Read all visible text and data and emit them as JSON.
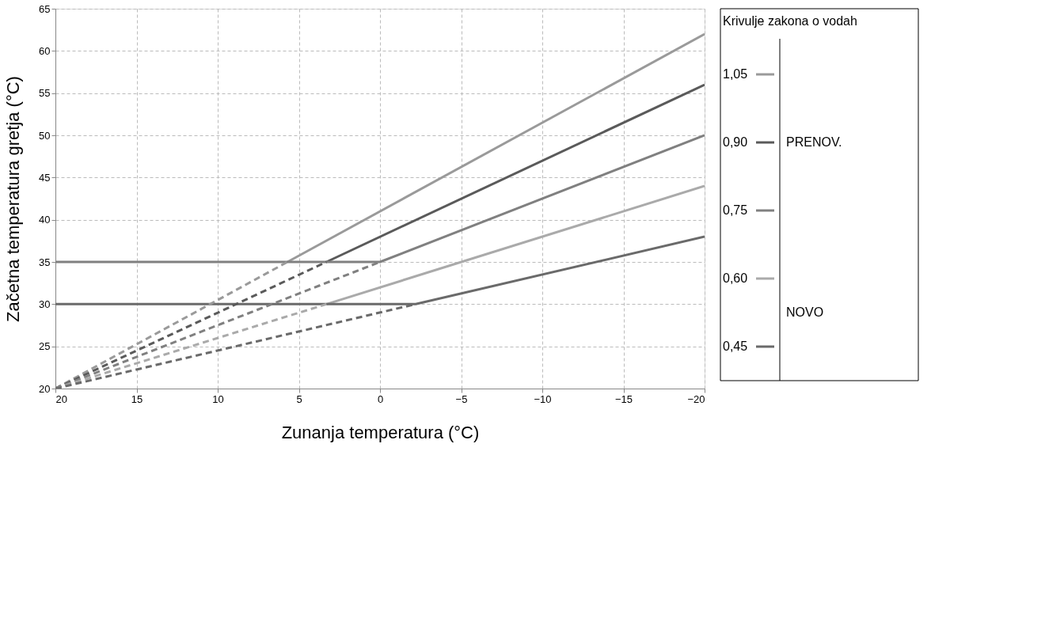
{
  "chart_data": {
    "type": "line",
    "xlabel": "Zunanja temperatura (°C)",
    "ylabel": "Začetna temperatura gretja (°C)",
    "legend_title": "Krivulje zakona o vodah",
    "xlim": [
      20,
      -20
    ],
    "xticks": [
      20,
      15,
      10,
      5,
      0,
      -5,
      -10,
      -15,
      -20
    ],
    "ylim": [
      20,
      65
    ],
    "yticks": [
      20,
      25,
      30,
      35,
      40,
      45,
      50,
      55,
      60,
      65
    ],
    "grid": true,
    "legend": "right",
    "annotations": [
      "PRENOV.",
      "NOVO"
    ],
    "series": [
      {
        "name": "1,05",
        "color": "#9a9a9a",
        "line_style": "solid",
        "x": [
          5.7,
          -20
        ],
        "values": [
          35,
          62
        ]
      },
      {
        "name": "0,90",
        "color": "#5a5a5a",
        "line_style": "solid",
        "x": [
          3.3,
          -20
        ],
        "values": [
          35,
          56
        ]
      },
      {
        "name": "0,75",
        "color": "#808080",
        "line_style": "solid",
        "x": [
          20,
          0,
          -20
        ],
        "values": [
          35,
          35,
          50
        ]
      },
      {
        "name": "0,60",
        "color": "#aaaaaa",
        "line_style": "solid",
        "x": [
          3.3,
          -20
        ],
        "values": [
          30,
          44
        ]
      },
      {
        "name": "0,45",
        "color": "#6a6a6a",
        "line_style": "solid",
        "x": [
          20,
          -2.2,
          -20
        ],
        "values": [
          30,
          30,
          38
        ]
      },
      {
        "color": "#9a9a9a",
        "line_style": "dashed",
        "x": [
          20,
          5.7
        ],
        "values": [
          20,
          35
        ]
      },
      {
        "color": "#5a5a5a",
        "line_style": "dashed",
        "x": [
          20,
          3.3
        ],
        "values": [
          20,
          35
        ]
      },
      {
        "color": "#808080",
        "line_style": "dashed",
        "x": [
          20,
          0
        ],
        "values": [
          20,
          35
        ]
      },
      {
        "color": "#aaaaaa",
        "line_style": "dashed",
        "x": [
          20,
          3.3
        ],
        "values": [
          20,
          30
        ]
      },
      {
        "color": "#6a6a6a",
        "line_style": "dashed",
        "x": [
          20,
          -2.2
        ],
        "values": [
          20,
          30
        ]
      }
    ]
  }
}
